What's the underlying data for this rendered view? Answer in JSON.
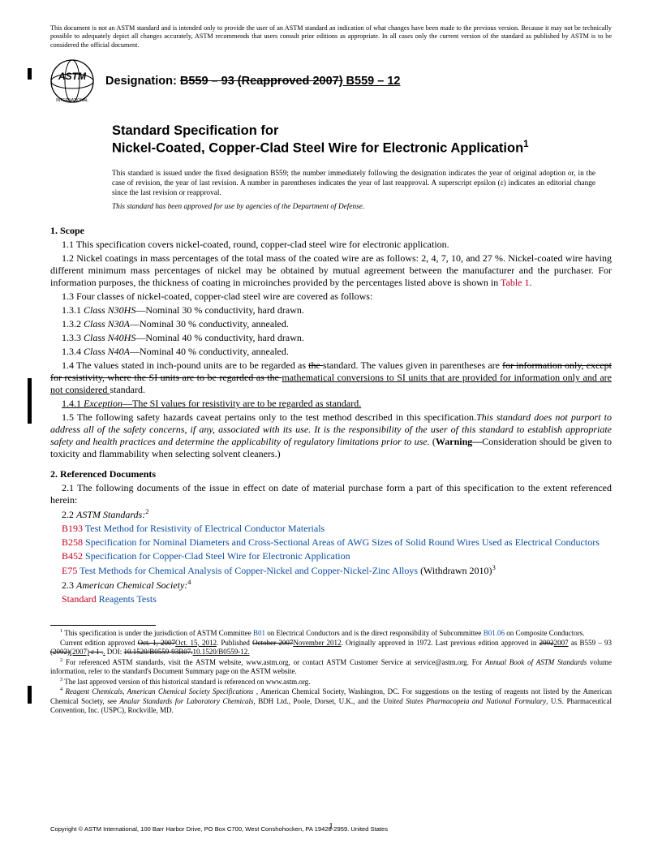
{
  "colors": {
    "text": "#000000",
    "link_blue": "#0b4ea2",
    "link_red": "#c00020",
    "background": "#ffffff"
  },
  "disclaimer": "This document is not an ASTM standard and is intended only to provide the user of an ASTM standard an indication of what changes have been made to the previous version. Because it may not be technically possible to adequately depict all changes accurately, ASTM recommends that users consult prior editions as appropriate. In all cases only the current version of the standard as published by ASTM is to be considered the official document.",
  "designation": {
    "label": "Designation: ",
    "old": "B559 – 93 (Reapproved 2007)",
    "new": " B559 – 12"
  },
  "title": {
    "line1": "Standard Specification for",
    "line2_pre": "Nickel-Coated, Copper-Clad Steel Wire for Electronic Application",
    "sup": "1"
  },
  "issue_note": "This standard is issued under the fixed designation B559; the number immediately following the designation indicates the year of original adoption or, in the case of revision, the year of last revision. A number in parentheses indicates the year of last reapproval. A superscript epsilon (ε) indicates an editorial change since the last revision or reapproval.",
  "dod_note": "This standard has been approved for use by agencies of the Department of Defense.",
  "s1": {
    "head": "1.  Scope",
    "p11": "1.1  This specification covers nickel-coated, round, copper-clad steel wire for electronic application.",
    "p12_a": "1.2  Nickel coatings in mass percentages of the total mass of the coated wire are as follows: 2, 4, 7, 10, and 27 %. Nickel-coated wire having different minimum mass percentages of nickel may be obtained by mutual agreement between the manufacturer and the purchaser. For information purposes, the thickness of coating in microinches provided by the percentages listed above is shown in ",
    "p12_link": "Table 1",
    "p12_b": ".",
    "p13": "1.3  Four classes of nickel-coated, copper-clad steel wire are covered as follows:",
    "p131_a": "1.3.1  ",
    "p131_em": "Class N30HS",
    "p131_b": "—Nominal 30 % conductivity, hard drawn.",
    "p132_a": "1.3.2  ",
    "p132_em": "Class N30A",
    "p132_b": "—Nominal 30 % conductivity, annealed.",
    "p133_a": "1.3.3  ",
    "p133_em": "Class N40HS",
    "p133_b": "—Nominal 40 % conductivity, hard drawn.",
    "p134_a": "1.3.4  ",
    "p134_em": "Class N40A",
    "p134_b": "—Nominal 40 % conductivity, annealed.",
    "p14_a": "1.4  The values stated in inch-pound units are to be regarded as ",
    "p14_s1": "the ",
    "p14_b": "standard. The values given in parentheses are ",
    "p14_s2": "for information only, except for resistivity, where the SI units are to be regarded as the ",
    "p14_u1": "mathematical conversions to SI units that are provided for information only and are not considered ",
    "p14_c": "standard.",
    "p141_a": "1.4.1  ",
    "p141_em": "Exception",
    "p141_b": "—The SI values for resistivity are to be regarded as standard.",
    "p15_a": "1.5  The following safety hazards caveat pertains only to the test method described in this specification.",
    "p15_em": "This standard does not purport to address all of the safety concerns, if any, associated with its use. It is the responsibility of the user of this standard to establish appropriate safety and health practices and determine the applicability of regulatory limitations prior to use.",
    "p15_b": " (",
    "p15_warn": "Warning—",
    "p15_c": "Consideration should be given to toxicity and flammability when selecting solvent cleaners.)"
  },
  "s2": {
    "head": "2.  Referenced Documents",
    "p21": "2.1  The following documents of the issue in effect on date of material purchase form a part of this specification to the extent referenced herein:",
    "p22_a": "2.2  ",
    "p22_em": "ASTM Standards:",
    "p22_sup": "2",
    "refs": [
      {
        "code": "B193",
        "title": " Test Method for Resistivity of Electrical Conductor Materials",
        "tail": ""
      },
      {
        "code": "B258",
        "title": " Specification for Nominal Diameters and Cross-Sectional Areas of AWG Sizes of Solid Round Wires Used as Electrical Conductors",
        "tail": ""
      },
      {
        "code": "B452",
        "title": " Specification for Copper-Clad Steel Wire for Electronic Application",
        "tail": ""
      },
      {
        "code": "E75",
        "title": " Test Methods for Chemical Analysis of Copper-Nickel and Copper-Nickel-Zinc Alloys",
        "tail": " (Withdrawn 2010)",
        "sup": "3"
      }
    ],
    "p23_a": "2.3  ",
    "p23_em": "American Chemical Society:",
    "p23_sup": "4",
    "p23_std_code": "Standard",
    "p23_std_title": " Reagents Tests"
  },
  "footnotes": {
    "f1_a": " This specification is under the jurisdiction of ASTM Committee ",
    "f1_l1": "B01",
    "f1_b": " on Electrical Conductors and is the direct responsibility of Subcommittee ",
    "f1_l2": "B01.06",
    "f1_c": " on Composite Conductors.",
    "f1_line2_a": "Current edition approved ",
    "f1_line2_s1": "Oct. 1, 2007",
    "f1_line2_u1": "Oct. 15, 2012",
    "f1_line2_b": ". Published ",
    "f1_line2_s2": "October 2007",
    "f1_line2_u2": "November 2012",
    "f1_line2_c": ". Originally approved in 1972. Last previous edition approved in ",
    "f1_line2_s3": "2002",
    "f1_line2_u3": "2007",
    "f1_line2_d": " as B559 – 93 ",
    "f1_line2_s4": "(2002)",
    "f1_line2_u4": "(2007)",
    "f1_line2_s5": " ε 1 .",
    "f1_line2_u5": ".",
    "f1_line2_e": " DOI: ",
    "f1_line2_s6": "10.1520/B0559-93R07.",
    "f1_line2_u6": "10.1520/B0559-12.",
    "f2_a": " For referenced ASTM standards, visit the ASTM website, www.astm.org, or contact ASTM Customer Service at service@astm.org. For ",
    "f2_em": "Annual Book of ASTM Standards",
    "f2_b": " volume information, refer to the standard's Document Summary page on the ASTM website.",
    "f3": " The last approved version of this historical standard is referenced on www.astm.org.",
    "f4_a": " ",
    "f4_em1": "Reagent Chemicals, American Chemical Society Specifications",
    "f4_b": "  , American Chemical Society, Washington, DC. For suggestions on the testing of reagents not listed by the American Chemical Society, see ",
    "f4_em2": "Analar Standards for Laboratory Chemicals",
    "f4_c": ", BDH Ltd., Poole, Dorset, U.K., and the ",
    "f4_em3": "United States Pharmacopeia and National Formulary",
    "f4_d": ", U.S. Pharmaceutical Convention, Inc. (USPC), Rockville, MD."
  },
  "copyright": "Copyright © ASTM International, 100 Barr Harbor Drive, PO Box C700, West Conshohocken, PA 19428-2959. United States",
  "pagenum": "1"
}
